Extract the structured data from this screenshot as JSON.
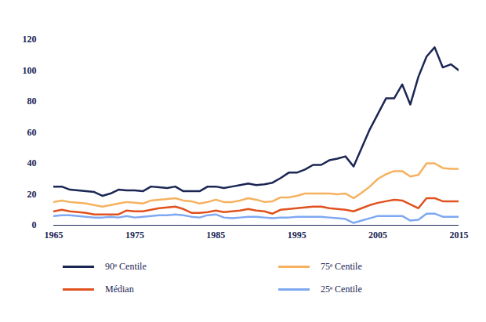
{
  "chart_data": {
    "type": "line",
    "x": [
      1965,
      1966,
      1967,
      1968,
      1969,
      1970,
      1971,
      1972,
      1973,
      1974,
      1975,
      1976,
      1977,
      1978,
      1979,
      1980,
      1981,
      1982,
      1983,
      1984,
      1985,
      1986,
      1987,
      1988,
      1989,
      1990,
      1991,
      1992,
      1993,
      1994,
      1995,
      1996,
      1997,
      1998,
      1999,
      2000,
      2001,
      2002,
      2003,
      2004,
      2005,
      2006,
      2007,
      2008,
      2009,
      2010,
      2011,
      2012,
      2013,
      2014,
      2015
    ],
    "series": [
      {
        "name": "90ᵉ Centile",
        "color": "#1b2654",
        "values": [
          25,
          25,
          23,
          22.5,
          22,
          21.5,
          19,
          20.5,
          23,
          22.5,
          22.5,
          22,
          25,
          24.5,
          24,
          25,
          22,
          22,
          22,
          25,
          25,
          24,
          25,
          26,
          27,
          26,
          26.5,
          27.5,
          30.5,
          34,
          34,
          36,
          39,
          39,
          42,
          43,
          44.5,
          38,
          50,
          62,
          72,
          82,
          82,
          91,
          78,
          96,
          109,
          115,
          102,
          104,
          100
        ]
      },
      {
        "name": "75ᵉ Centile",
        "color": "#f6b15f",
        "values": [
          15,
          16,
          15,
          14.5,
          14,
          13,
          12,
          13,
          14,
          15,
          14.5,
          14,
          16,
          16.5,
          17,
          17.5,
          16,
          15.5,
          14,
          15,
          16.5,
          15,
          15,
          16,
          17.5,
          16.5,
          15,
          15.5,
          18,
          18,
          19,
          20.5,
          20.5,
          20.5,
          20.5,
          20,
          20.5,
          17.5,
          21,
          25,
          30,
          33,
          35,
          35,
          31.5,
          32.5,
          40,
          40,
          37,
          36.5,
          36.5
        ]
      },
      {
        "name": "Médian",
        "color": "#e0521f",
        "values": [
          9,
          10,
          9,
          8.5,
          8,
          7,
          7,
          7,
          7,
          9.5,
          9,
          9,
          10,
          11,
          11.5,
          12,
          10.5,
          8,
          8,
          8.5,
          9.5,
          8.5,
          9,
          9.5,
          10.5,
          9.5,
          9,
          7.5,
          10,
          10.5,
          11,
          11.5,
          12,
          12,
          11,
          10.5,
          10,
          9,
          11,
          13,
          14.5,
          15.5,
          16.5,
          16,
          13.5,
          11,
          17.5,
          17.5,
          15.5,
          15.5,
          15.5
        ]
      },
      {
        "name": "25ᵉ Centile",
        "color": "#7fa8f2",
        "values": [
          6,
          6.5,
          6.5,
          6,
          5.5,
          5,
          5,
          5.5,
          5,
          6,
          5,
          5.5,
          6,
          6.5,
          6.5,
          7,
          6.5,
          5.5,
          5,
          6.5,
          7,
          5,
          4.5,
          5,
          5.5,
          5.5,
          5,
          4.5,
          5,
          5,
          5.5,
          5.5,
          5.5,
          5.5,
          5,
          4.5,
          4,
          1.5,
          3,
          4.5,
          6,
          6,
          6,
          6,
          3,
          3.5,
          7.5,
          7.5,
          5.5,
          5.5,
          5.5
        ]
      }
    ],
    "xlim": [
      1965,
      2015
    ],
    "xticks": [
      1965,
      1975,
      1985,
      1995,
      2005,
      2015
    ],
    "ylim": [
      0,
      120
    ],
    "yticks": [
      0,
      20,
      40,
      60,
      80,
      100,
      120
    ],
    "grid": false,
    "legend": "bottom"
  }
}
